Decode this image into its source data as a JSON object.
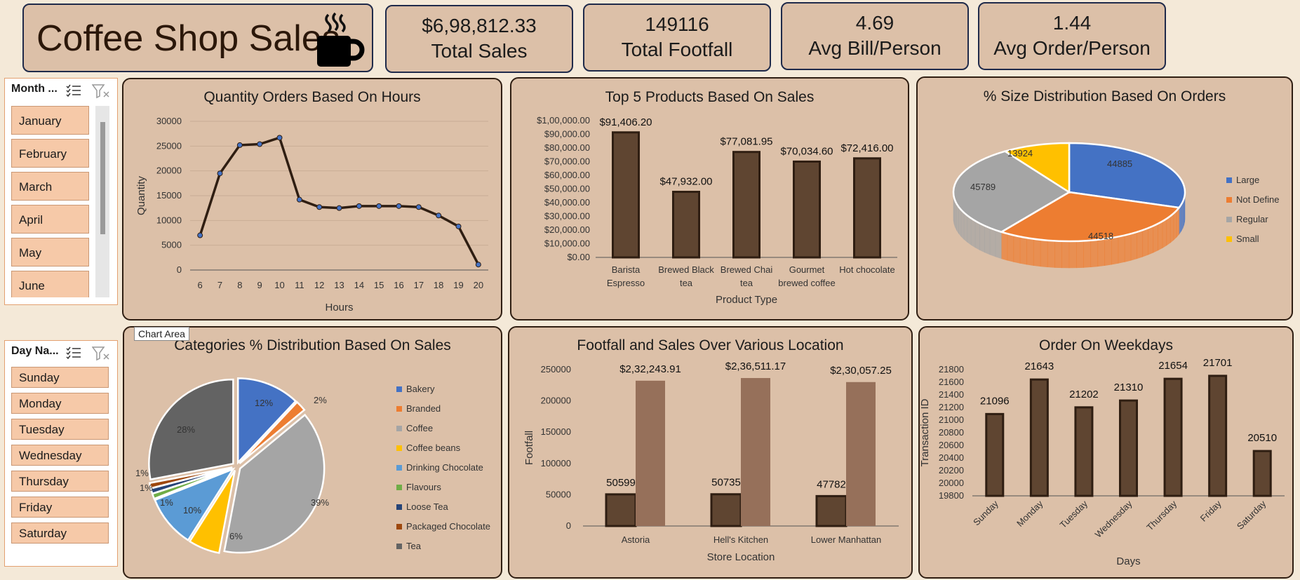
{
  "header": {
    "title": "Coffee Shop Sales"
  },
  "kpis": [
    {
      "value": "$6,98,812.33",
      "label": "Total Sales"
    },
    {
      "value": "149116",
      "label": "Total Footfall"
    },
    {
      "value": "4.69",
      "label": "Avg Bill/Person"
    },
    {
      "value": "1.44",
      "label": "Avg Order/Person"
    }
  ],
  "slicers": {
    "month": {
      "header": "Month ...",
      "items": [
        "January",
        "February",
        "March",
        "April",
        "May",
        "June"
      ]
    },
    "day": {
      "header": "Day Na...",
      "items": [
        "Sunday",
        "Monday",
        "Tuesday",
        "Wednesday",
        "Thursday",
        "Friday",
        "Saturday"
      ]
    }
  },
  "tooltip": "Chart Area",
  "colors": {
    "bar": "#5f4531",
    "bar_dark": "#2f1e12",
    "bar_light": "#96705a",
    "card": "#dcc0a8"
  },
  "chart_data": [
    {
      "id": "hours",
      "type": "line",
      "title": "Quantity Orders Based On Hours",
      "xlabel": "Hours",
      "ylabel": "Quantity",
      "x": [
        6,
        7,
        8,
        9,
        10,
        11,
        12,
        13,
        14,
        15,
        16,
        17,
        18,
        19,
        20
      ],
      "values": [
        7000,
        19500,
        25200,
        25400,
        26700,
        14200,
        12700,
        12500,
        12900,
        12900,
        12900,
        12700,
        11000,
        8800,
        1100
      ],
      "ylim": [
        0,
        30000
      ],
      "yticks": [
        0,
        5000,
        10000,
        15000,
        20000,
        25000,
        30000
      ]
    },
    {
      "id": "products",
      "type": "bar",
      "title": "Top 5 Products Based On Sales",
      "xlabel": "Product Type",
      "ylabel": "",
      "categories": [
        [
          "Barista",
          "Espresso"
        ],
        [
          "Brewed Black",
          "tea"
        ],
        [
          "Brewed Chai",
          "tea"
        ],
        [
          "Gourmet",
          "brewed coffee"
        ],
        [
          "Hot chocolate"
        ]
      ],
      "values": [
        91406.2,
        47932.0,
        77081.95,
        70034.6,
        72416.0
      ],
      "labels": [
        "$91,406.20",
        "$47,932.00",
        "$77,081.95",
        "$70,034.60",
        "$72,416.00"
      ],
      "ylim": [
        0,
        100000
      ],
      "yticks": [
        "$0.00",
        "$10,000.00",
        "$20,000.00",
        "$30,000.00",
        "$40,000.00",
        "$50,000.00",
        "$60,000.00",
        "$70,000.00",
        "$80,000.00",
        "$90,000.00",
        "$1,00,000.00"
      ]
    },
    {
      "id": "size",
      "type": "pie",
      "title": "% Size Distribution Based On Orders",
      "categories": [
        "Large",
        "Not Define",
        "Regular",
        "Small"
      ],
      "values": [
        44885,
        44518,
        45789,
        13924
      ],
      "labels": [
        "44885",
        "44518",
        "45789",
        "13924"
      ],
      "colors": [
        "#4472c4",
        "#ed7d31",
        "#a5a5a5",
        "#ffc000"
      ]
    },
    {
      "id": "categories",
      "type": "pie",
      "title": "Categories % Distribution Based On Sales",
      "categories": [
        "Bakery",
        "Branded",
        "Coffee",
        "Coffee beans",
        "Drinking Chocolate",
        "Flavours",
        "Loose Tea",
        "Packaged Chocolate",
        "Tea"
      ],
      "values": [
        12,
        2,
        39,
        6,
        10,
        1,
        1,
        1,
        28
      ],
      "labels": [
        "12%",
        "2%",
        "39%",
        "6%",
        "10%",
        "1%",
        "1%",
        "1%",
        "28%"
      ],
      "colors": [
        "#4472c4",
        "#ed7d31",
        "#a5a5a5",
        "#ffc000",
        "#5b9bd5",
        "#70ad47",
        "#264478",
        "#9e480e",
        "#636363"
      ]
    },
    {
      "id": "location",
      "type": "bar",
      "title": "Footfall and Sales Over Various Location",
      "xlabel": "Store Location",
      "ylabel": "Footfall",
      "categories": [
        "Astoria",
        "Hell's Kitchen",
        "Lower Manhattan"
      ],
      "series": [
        {
          "name": "Footfall",
          "values": [
            50599,
            50735,
            47782
          ],
          "labels": [
            "50599",
            "50735",
            "47782"
          ]
        },
        {
          "name": "Sales",
          "values": [
            232243.91,
            236511.17,
            230057.25
          ],
          "labels": [
            "$2,32,243.91",
            "$2,36,511.17",
            "$2,30,057.25"
          ]
        }
      ],
      "ylim": [
        0,
        250000
      ],
      "yticks": [
        0,
        50000,
        100000,
        150000,
        200000,
        250000
      ]
    },
    {
      "id": "weekdays",
      "type": "bar",
      "title": "Order On Weekdays",
      "xlabel": "Days",
      "ylabel": "Transaction ID",
      "categories": [
        "Sunday",
        "Monday",
        "Tuesday",
        "Wednesday",
        "Thursday",
        "Friday",
        "Saturday"
      ],
      "values": [
        21096,
        21643,
        21202,
        21310,
        21654,
        21701,
        20510
      ],
      "labels": [
        "21096",
        "21643",
        "21202",
        "21310",
        "21654",
        "21701",
        "20510"
      ],
      "ylim": [
        19800,
        21800
      ],
      "yticks": [
        19800,
        20000,
        20200,
        20400,
        20600,
        20800,
        21000,
        21200,
        21400,
        21600,
        21800
      ]
    }
  ]
}
